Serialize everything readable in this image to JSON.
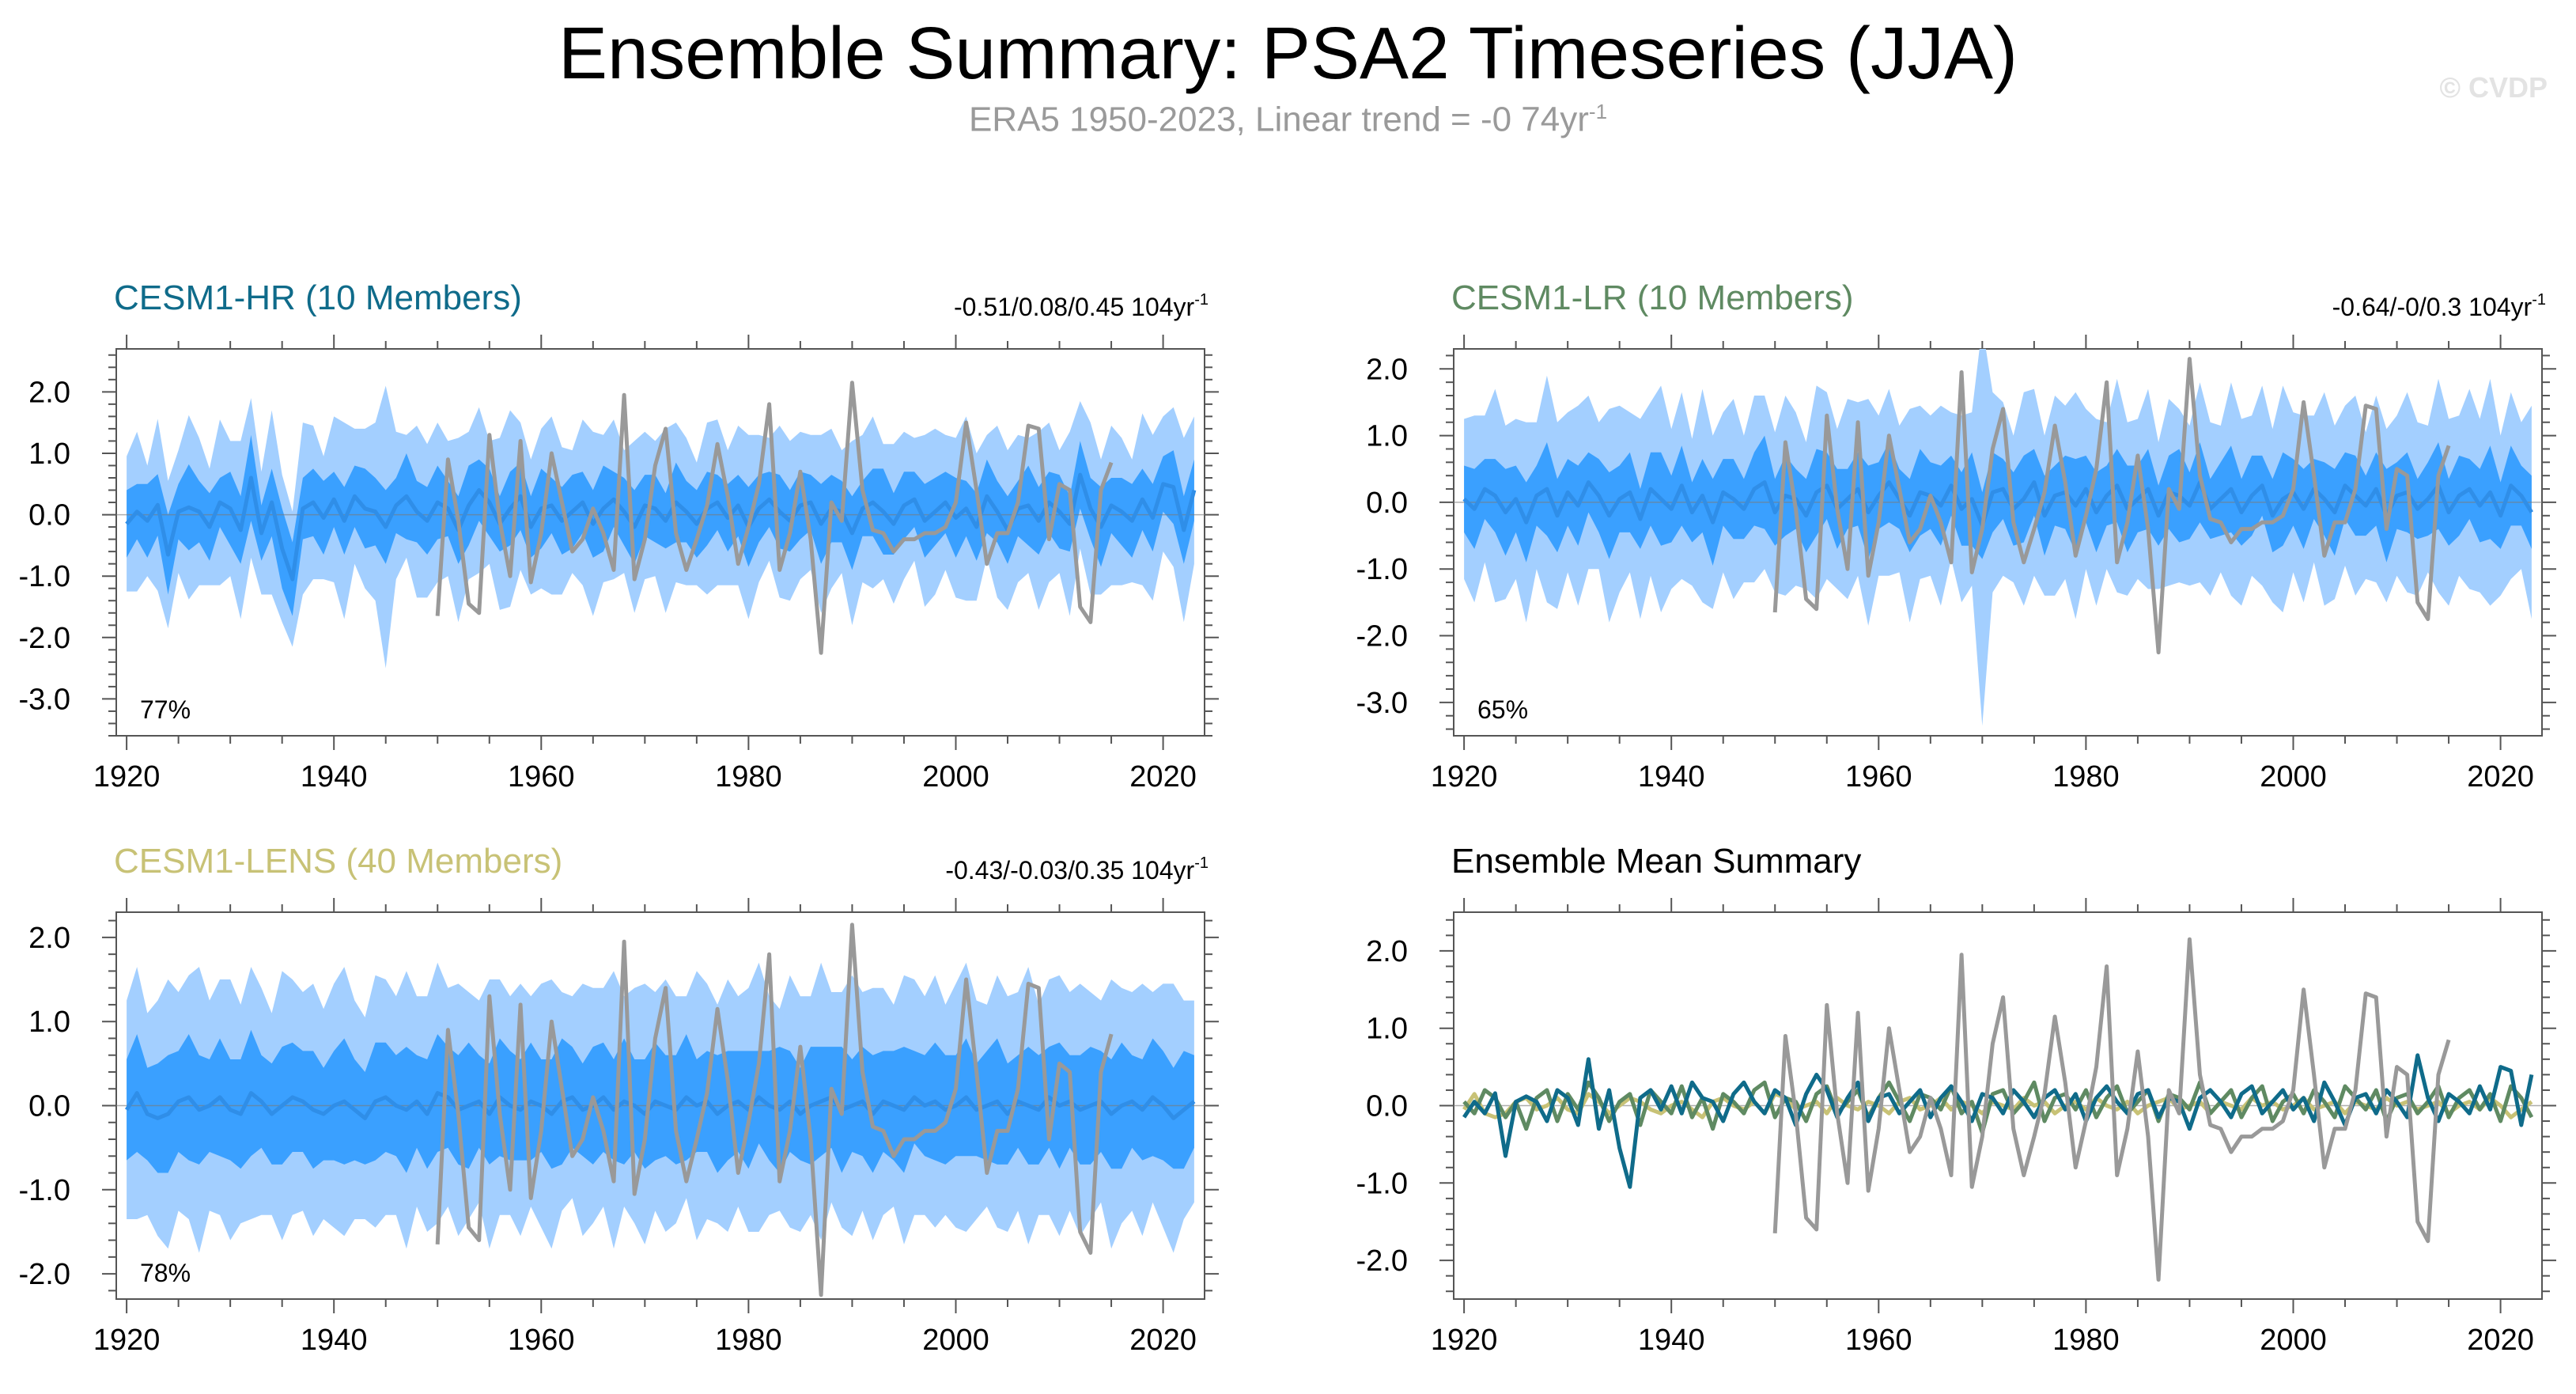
{
  "title": "Ensemble Summary: PSA2 Timeseries (JJA)",
  "subtitle": {
    "text": "ERA5 1950-2023, Linear trend = -0 74yr",
    "sup": "-1"
  },
  "watermark": "© CVDP",
  "colors": {
    "hr": "#0f6b8a",
    "lr": "#5f8a62",
    "lens": "#c8c276",
    "obs": "#999999",
    "outer_band": "#a3cfff",
    "inner_band": "#3aa0ff",
    "mean_line": "#2f8ee8"
  },
  "chart_data": [
    {
      "type": "area",
      "id": "hr",
      "title": "CESM1-HR (10 Members)",
      "title_color": "#0f6b8a",
      "trend": "-0.51/0.08/0.45 104yr",
      "trend_sup": "-1",
      "percent": "77%",
      "xlim": [
        1919,
        2024
      ],
      "ylim": [
        -3.6,
        2.7
      ],
      "xticks": [
        1920,
        1940,
        1960,
        1980,
        2000,
        2020
      ],
      "xtick_labels": [
        "1920",
        "1940",
        "1960",
        "1980",
        "2000",
        "2020"
      ],
      "yticks": [
        2,
        1,
        0,
        -1,
        -2,
        -3
      ],
      "ytick_labels": [
        "2.0",
        "1.0",
        "0.0",
        "-1.0",
        "-2.0",
        "-3.0"
      ],
      "start_year": 1920,
      "obs_start_year": 1950,
      "ens_mean": [
        -0.15,
        0.05,
        -0.1,
        0.16,
        -0.65,
        0.05,
        0.12,
        0.05,
        -0.2,
        0.2,
        0.1,
        -0.25,
        0.6,
        -0.3,
        0.2,
        -0.55,
        -1.05,
        0.1,
        0.2,
        -0.05,
        0.25,
        -0.1,
        0.3,
        0.1,
        0.05,
        -0.2,
        0.15,
        0.3,
        0.05,
        -0.1,
        0.2,
        0.1,
        -0.25,
        0.15,
        0.4,
        0.2,
        -0.15,
        0.1,
        0.3,
        -0.2,
        0.1,
        0.15,
        -0.1,
        0.05,
        0.2,
        -0.15,
        0.1,
        0.25,
        0.05,
        -0.2,
        0.15,
        0.1,
        -0.1,
        0.2,
        0.05,
        -0.15,
        0.1,
        0.2,
        -0.05,
        0.15,
        -0.2,
        0.1,
        0.25,
        0.05,
        -0.1,
        0.15,
        0.2,
        -0.15,
        0.1,
        0.05,
        -0.3,
        0.1,
        0.2,
        0.05,
        -0.15,
        0.15,
        0.25,
        -0.1,
        0.05,
        0.2,
        -0.05,
        0.1,
        -0.2,
        0.3,
        0.05,
        -0.25,
        0.1,
        0.15,
        -0.1,
        0.2,
        0.05,
        -0.15,
        0.65,
        0.1,
        -0.2,
        0.15,
        0.05,
        -0.1,
        0.25,
        -0.05,
        0.5,
        0.45,
        -0.25,
        0.4
      ],
      "inner_half": [
        0.55,
        0.45,
        0.6,
        0.5,
        0.65,
        0.45,
        0.7,
        0.5,
        0.55,
        0.4,
        0.6,
        0.55,
        0.7,
        0.45,
        0.55,
        0.65,
        0.6,
        0.5,
        0.55,
        0.6,
        0.45,
        0.55,
        0.5,
        0.65,
        0.55,
        0.6,
        0.45,
        0.7,
        0.5,
        0.55,
        0.6,
        0.45,
        0.55,
        0.65,
        0.5,
        0.55,
        0.45,
        0.6,
        0.55,
        0.5,
        0.65,
        0.45,
        0.55,
        0.6,
        0.5,
        0.55,
        0.7,
        0.45,
        0.55,
        0.6,
        0.5,
        0.55,
        0.45,
        0.65,
        0.5,
        0.55,
        0.6,
        0.45,
        0.55,
        0.5,
        0.65,
        0.55,
        0.45,
        0.6,
        0.5,
        0.55,
        0.45,
        0.65,
        0.55,
        0.5,
        0.6,
        0.45,
        0.55,
        0.7,
        0.5,
        0.55,
        0.45,
        0.6,
        0.55,
        0.5,
        0.65,
        0.45,
        0.55,
        0.6,
        0.5,
        0.55,
        0.45,
        0.65,
        0.55,
        0.5,
        0.6,
        0.45,
        0.55,
        0.5,
        0.65,
        0.45,
        0.55,
        0.6,
        0.5,
        0.55,
        0.45,
        0.6,
        0.55,
        0.5
      ],
      "outer_half": [
        1.1,
        1.3,
        0.9,
        1.4,
        1.2,
        1.0,
        1.5,
        1.2,
        0.95,
        1.35,
        1.1,
        1.45,
        1.3,
        1.0,
        1.5,
        1.2,
        1.1,
        1.4,
        1.25,
        1.0,
        1.35,
        1.6,
        1.1,
        1.3,
        1.45,
        2.3,
        1.2,
        1.0,
        1.4,
        1.25,
        1.3,
        1.1,
        1.5,
        1.2,
        1.35,
        1.0,
        1.4,
        1.6,
        1.2,
        1.1,
        1.3,
        1.45,
        1.2,
        1.0,
        1.35,
        1.5,
        1.2,
        1.3,
        1.0,
        1.4,
        1.2,
        1.1,
        1.5,
        1.3,
        1.2,
        1.0,
        1.4,
        1.35,
        1.1,
        1.3,
        1.5,
        1.2,
        1.0,
        1.4,
        1.3,
        1.2,
        1.1,
        1.45,
        1.3,
        1.0,
        1.5,
        1.2,
        1.4,
        1.1,
        1.3,
        1.2,
        1.0,
        1.4,
        1.35,
        1.1,
        1.3,
        1.5,
        1.2,
        1.0,
        1.4,
        1.3,
        1.2,
        1.1,
        1.45,
        1.3,
        1.0,
        1.5,
        1.2,
        1.4,
        1.1,
        1.3,
        1.2,
        1.0,
        1.4,
        1.35,
        1.1,
        1.3,
        1.5,
        1.2
      ],
      "obs": [
        -1.65,
        0.9,
        -0.1,
        -1.45,
        -1.6,
        1.3,
        -0.1,
        -1.0,
        1.2,
        -1.1,
        -0.3,
        1.0,
        0.2,
        -0.6,
        -0.4,
        0.1,
        -0.3,
        -0.9,
        1.95,
        -1.05,
        -0.4,
        0.8,
        1.4,
        -0.3,
        -0.9,
        -0.4,
        0.15,
        1.15,
        0.3,
        -0.8,
        -0.2,
        0.5,
        1.8,
        -0.9,
        -0.3,
        0.7,
        -0.4,
        -2.25,
        0.2,
        -0.1,
        2.15,
        0.4,
        -0.25,
        -0.3,
        -0.6,
        -0.4,
        -0.4,
        -0.3,
        -0.3,
        -0.2,
        0.2,
        1.5,
        0.4,
        -0.8,
        -0.3,
        -0.3,
        0.2,
        1.45,
        1.4,
        -0.4,
        0.5,
        0.4,
        -1.5,
        -1.75,
        0.4,
        0.85
      ]
    },
    {
      "type": "area",
      "id": "lr",
      "title": "CESM1-LR (10 Members)",
      "title_color": "#5f8a62",
      "trend": "-0.64/-0/0.3 104yr",
      "trend_sup": "-1",
      "percent": "65%",
      "xlim": [
        1919,
        2024
      ],
      "ylim": [
        -3.5,
        2.3
      ],
      "xticks": [
        1920,
        1940,
        1960,
        1980,
        2000,
        2020
      ],
      "xtick_labels": [
        "1920",
        "1940",
        "1960",
        "1980",
        "2000",
        "2020"
      ],
      "yticks": [
        2,
        1,
        0,
        -1,
        -2,
        -3
      ],
      "ytick_labels": [
        "2.0",
        "1.0",
        "0.0",
        "-1.0",
        "-2.0",
        "-3.0"
      ],
      "start_year": 1920,
      "obs_start_year": 1950,
      "ens_mean": [
        0.05,
        -0.1,
        0.2,
        0.1,
        -0.15,
        0.05,
        -0.3,
        0.1,
        0.2,
        -0.2,
        0.15,
        -0.05,
        0.3,
        0.1,
        -0.2,
        0.05,
        0.15,
        -0.25,
        0.2,
        0.05,
        -0.1,
        0.25,
        -0.15,
        0.1,
        -0.3,
        0.15,
        0.05,
        -0.1,
        0.2,
        0.3,
        -0.15,
        0.1,
        0.05,
        -0.2,
        0.15,
        0.25,
        -0.1,
        0.05,
        0.2,
        -0.15,
        0.1,
        0.3,
        0.05,
        -0.2,
        0.15,
        0.1,
        -0.05,
        0.25,
        -0.1,
        0.05,
        -0.35,
        0.15,
        0.2,
        -0.1,
        0.05,
        0.3,
        -0.2,
        0.1,
        0.15,
        -0.05,
        0.2,
        -0.15,
        0.1,
        0.25,
        -0.1,
        0.05,
        0.2,
        -0.2,
        0.15,
        0.1,
        -0.05,
        0.3,
        -0.1,
        0.05,
        0.2,
        -0.15,
        0.1,
        0.25,
        -0.2,
        0.05,
        0.15,
        -0.1,
        0.2,
        0.05,
        -0.15,
        0.25,
        0.1,
        -0.05,
        0.2,
        -0.2,
        0.1,
        0.15,
        -0.1,
        0.05,
        0.25,
        -0.15,
        0.1,
        0.2,
        -0.05,
        0.15,
        -0.2,
        0.25,
        0.1,
        -0.15
      ],
      "inner_half": [
        0.5,
        0.6,
        0.45,
        0.55,
        0.65,
        0.5,
        0.6,
        0.45,
        0.7,
        0.55,
        0.5,
        0.6,
        0.45,
        0.55,
        0.65,
        0.5,
        0.6,
        0.45,
        0.55,
        0.7,
        0.5,
        0.6,
        0.45,
        0.55,
        0.65,
        0.5,
        0.6,
        0.45,
        0.55,
        0.7,
        0.5,
        0.6,
        0.45,
        0.55,
        0.65,
        0.5,
        0.6,
        0.45,
        0.55,
        0.7,
        0.5,
        0.6,
        0.45,
        0.55,
        0.65,
        0.5,
        0.6,
        0.45,
        0.55,
        0.7,
        0.5,
        0.6,
        0.45,
        0.55,
        0.65,
        0.5,
        0.6,
        0.45,
        0.55,
        0.7,
        0.5,
        0.6,
        0.45,
        0.55,
        0.65,
        0.5,
        0.6,
        0.45,
        0.55,
        0.7,
        0.5,
        0.6,
        0.45,
        0.55,
        0.65,
        0.5,
        0.6,
        0.45,
        0.55,
        0.7,
        0.5,
        0.6,
        0.45,
        0.55,
        0.65,
        0.5,
        0.6,
        0.45,
        0.55,
        0.7,
        0.5,
        0.6,
        0.45,
        0.55,
        0.65,
        0.5,
        0.6,
        0.45,
        0.55,
        0.7,
        0.5,
        0.6,
        0.45,
        0.55
      ],
      "outer_half": [
        1.2,
        1.4,
        1.1,
        1.6,
        1.3,
        1.2,
        1.5,
        1.1,
        1.7,
        1.4,
        1.2,
        1.5,
        1.3,
        1.1,
        1.6,
        1.4,
        1.2,
        1.5,
        1.3,
        1.7,
        1.2,
        1.4,
        1.1,
        1.6,
        1.3,
        1.2,
        1.5,
        1.1,
        1.4,
        1.3,
        1.2,
        1.5,
        1.3,
        1.1,
        1.6,
        1.4,
        1.2,
        1.5,
        1.3,
        1.7,
        1.2,
        1.4,
        1.1,
        1.6,
        1.3,
        1.2,
        1.5,
        1.1,
        1.4,
        1.3,
        3.0,
        1.5,
        1.3,
        1.1,
        1.6,
        1.4,
        1.2,
        1.5,
        1.3,
        1.7,
        1.2,
        1.4,
        1.1,
        1.6,
        1.3,
        1.2,
        1.5,
        1.1,
        1.4,
        1.3,
        1.2,
        1.5,
        1.3,
        1.1,
        1.6,
        1.4,
        1.2,
        1.5,
        1.3,
        1.7,
        1.2,
        1.4,
        1.1,
        1.6,
        1.3,
        1.2,
        1.5,
        1.1,
        1.4,
        1.3,
        1.2,
        1.5,
        1.3,
        1.1,
        1.6,
        1.4,
        1.2,
        1.5,
        1.3,
        1.7,
        1.2,
        1.4,
        1.1,
        1.6
      ],
      "obs": [
        -1.65,
        0.9,
        -0.1,
        -1.45,
        -1.6,
        1.3,
        -0.1,
        -1.0,
        1.2,
        -1.1,
        -0.3,
        1.0,
        0.2,
        -0.6,
        -0.4,
        0.1,
        -0.3,
        -0.9,
        1.95,
        -1.05,
        -0.4,
        0.8,
        1.4,
        -0.3,
        -0.9,
        -0.4,
        0.15,
        1.15,
        0.3,
        -0.8,
        -0.2,
        0.5,
        1.8,
        -0.9,
        -0.3,
        0.7,
        -0.4,
        -2.25,
        0.2,
        -0.1,
        2.15,
        0.4,
        -0.25,
        -0.3,
        -0.6,
        -0.4,
        -0.4,
        -0.3,
        -0.3,
        -0.2,
        0.2,
        1.5,
        0.4,
        -0.8,
        -0.3,
        -0.3,
        0.2,
        1.45,
        1.4,
        -0.4,
        0.5,
        0.4,
        -1.5,
        -1.75,
        0.4,
        0.85
      ]
    },
    {
      "type": "area",
      "id": "lens",
      "title": "CESM1-LENS (40 Members)",
      "title_color": "#c8c276",
      "trend": "-0.43/-0.03/0.35 104yr",
      "trend_sup": "-1",
      "percent": "78%",
      "xlim": [
        1919,
        2024
      ],
      "ylim": [
        -2.3,
        2.3
      ],
      "xticks": [
        1920,
        1940,
        1960,
        1980,
        2000,
        2020
      ],
      "xtick_labels": [
        "1920",
        "1940",
        "1960",
        "1980",
        "2000",
        "2020"
      ],
      "yticks": [
        2,
        1,
        0,
        -1,
        -2
      ],
      "ytick_labels": [
        "2.0",
        "1.0",
        "0.0",
        "-1.0",
        "-2.0"
      ],
      "start_year": 1920,
      "obs_start_year": 1950,
      "ens_mean": [
        -0.05,
        0.15,
        -0.1,
        -0.15,
        -0.1,
        0.05,
        0.1,
        -0.05,
        0.0,
        0.1,
        -0.05,
        -0.1,
        0.15,
        0.05,
        -0.1,
        0.0,
        0.1,
        0.05,
        -0.05,
        -0.1,
        0.0,
        0.05,
        -0.05,
        -0.15,
        0.05,
        0.1,
        0.0,
        -0.05,
        0.05,
        -0.1,
        0.15,
        0.1,
        -0.05,
        0.0,
        0.05,
        -0.1,
        0.1,
        0.0,
        -0.05,
        0.05,
        0.0,
        -0.1,
        0.05,
        0.1,
        -0.05,
        0.0,
        0.1,
        -0.05,
        0.05,
        0.0,
        -0.1,
        0.05,
        0.0,
        -0.05,
        0.1,
        0.0,
        0.05,
        -0.1,
        0.0,
        0.05,
        -0.05,
        0.1,
        0.0,
        -0.05,
        0.05,
        -0.1,
        0.0,
        0.05,
        0.1,
        -0.05,
        0.0,
        0.05,
        -0.1,
        0.05,
        0.0,
        -0.05,
        0.1,
        0.0,
        0.05,
        -0.05,
        0.0,
        0.1,
        -0.05,
        0.0,
        0.05,
        -0.1,
        0.05,
        0.0,
        -0.05,
        0.1,
        0.0,
        0.05,
        -0.05,
        0.0,
        0.05,
        -0.1,
        0.0,
        0.05,
        -0.05,
        0.1,
        0.0,
        -0.15,
        -0.05,
        0.05
      ],
      "inner_half": [
        0.6,
        0.7,
        0.55,
        0.65,
        0.7,
        0.6,
        0.75,
        0.65,
        0.55,
        0.7,
        0.6,
        0.65,
        0.75,
        0.55,
        0.6,
        0.7,
        0.65,
        0.6,
        0.7,
        0.55,
        0.65,
        0.75,
        0.6,
        0.55,
        0.7,
        0.65,
        0.6,
        0.75,
        0.55,
        0.65,
        0.7,
        0.6,
        0.65,
        0.75,
        0.55,
        0.6,
        0.7,
        0.65,
        0.6,
        0.7,
        0.55,
        0.65,
        0.75,
        0.6,
        0.55,
        0.7,
        0.65,
        0.6,
        0.75,
        0.55,
        0.65,
        0.7,
        0.6,
        0.65,
        0.75,
        0.55,
        0.6,
        0.7,
        0.65,
        0.6,
        0.7,
        0.55,
        0.65,
        0.75,
        0.6,
        0.55,
        0.7,
        0.65,
        0.6,
        0.75,
        0.55,
        0.65,
        0.7,
        0.6,
        0.65,
        0.75,
        0.55,
        0.6,
        0.7,
        0.65,
        0.6,
        0.7,
        0.55,
        0.65,
        0.75,
        0.6,
        0.55,
        0.7,
        0.65,
        0.6,
        0.75,
        0.55,
        0.65,
        0.7,
        0.6,
        0.65,
        0.75,
        0.55,
        0.6,
        0.7,
        0.65,
        0.6,
        0.7,
        0.55
      ],
      "outer_half": [
        1.3,
        1.5,
        1.2,
        1.4,
        1.6,
        1.3,
        1.45,
        1.7,
        1.25,
        1.4,
        1.55,
        1.3,
        1.5,
        1.35,
        1.2,
        1.6,
        1.4,
        1.3,
        1.5,
        1.25,
        1.45,
        1.6,
        1.3,
        1.2,
        1.5,
        1.4,
        1.3,
        1.65,
        1.25,
        1.4,
        1.55,
        1.3,
        1.5,
        1.35,
        1.2,
        1.6,
        1.4,
        1.3,
        1.5,
        1.25,
        1.45,
        1.6,
        1.3,
        1.2,
        1.5,
        1.4,
        1.3,
        1.65,
        1.25,
        1.4,
        1.55,
        1.3,
        1.5,
        1.35,
        1.2,
        1.6,
        1.4,
        1.3,
        1.5,
        1.25,
        1.45,
        1.6,
        1.3,
        1.2,
        1.5,
        1.4,
        1.3,
        1.65,
        1.25,
        1.4,
        1.55,
        1.3,
        1.5,
        1.35,
        1.2,
        1.6,
        1.4,
        1.3,
        1.5,
        1.25,
        1.45,
        1.6,
        1.3,
        1.2,
        1.5,
        1.4,
        1.3,
        1.65,
        1.25,
        1.4,
        1.55,
        1.3,
        1.5,
        1.35,
        1.2,
        1.6,
        1.4,
        1.3,
        1.5,
        1.25,
        1.45,
        1.6,
        1.3,
        1.2
      ],
      "obs": [
        -1.65,
        0.9,
        -0.1,
        -1.45,
        -1.6,
        1.3,
        -0.1,
        -1.0,
        1.2,
        -1.1,
        -0.3,
        1.0,
        0.2,
        -0.6,
        -0.4,
        0.1,
        -0.3,
        -0.9,
        1.95,
        -1.05,
        -0.4,
        0.8,
        1.4,
        -0.3,
        -0.9,
        -0.4,
        0.15,
        1.15,
        0.3,
        -0.8,
        -0.2,
        0.5,
        1.8,
        -0.9,
        -0.3,
        0.7,
        -0.4,
        -2.25,
        0.2,
        -0.1,
        2.15,
        0.4,
        -0.25,
        -0.3,
        -0.6,
        -0.4,
        -0.4,
        -0.3,
        -0.3,
        -0.2,
        0.2,
        1.5,
        0.4,
        -0.8,
        -0.3,
        -0.3,
        0.2,
        1.45,
        1.4,
        -0.4,
        0.5,
        0.4,
        -1.5,
        -1.75,
        0.4,
        0.85
      ]
    },
    {
      "type": "line",
      "id": "summary",
      "title": "Ensemble Mean Summary",
      "title_color": "#000000",
      "xlim": [
        1919,
        2024
      ],
      "ylim": [
        -2.5,
        2.5
      ],
      "xticks": [
        1920,
        1940,
        1960,
        1980,
        2000,
        2020
      ],
      "xtick_labels": [
        "1920",
        "1940",
        "1960",
        "1980",
        "2000",
        "2020"
      ],
      "yticks": [
        2,
        1,
        0,
        -1,
        -2
      ],
      "ytick_labels": [
        "2.0",
        "1.0",
        "0.0",
        "-1.0",
        "-2.0"
      ],
      "start_year": 1920,
      "obs_start_year": 1950,
      "series": [
        {
          "name": "CESM1-LENS",
          "color": "#c8c276",
          "ref": "lens"
        },
        {
          "name": "CESM1-LR",
          "color": "#5f8a62",
          "ref": "lr"
        },
        {
          "name": "CESM1-HR",
          "color": "#0f6b8a",
          "ref": "hr"
        },
        {
          "name": "ERA5",
          "color": "#999999",
          "ref": "obs"
        }
      ]
    }
  ]
}
